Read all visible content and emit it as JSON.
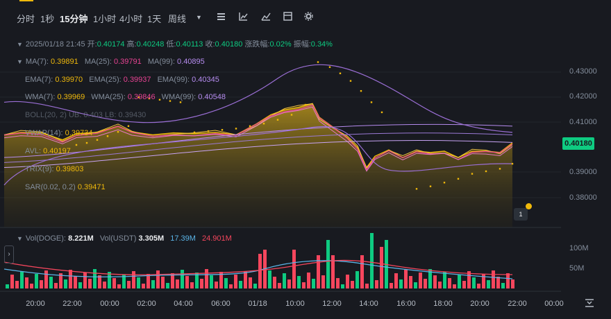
{
  "timeframes": [
    "分时",
    "1秒",
    "15分钟",
    "1小时",
    "4小时",
    "1天",
    "周线"
  ],
  "active_timeframe": 2,
  "toolbar_icons": [
    "chevron-down-icon",
    "indicator-icon",
    "chart-type-icon",
    "draw-icon",
    "template-icon",
    "settings-icon"
  ],
  "ohlc": {
    "date": "2025/01/18 21:45",
    "open_label": "开:",
    "open": "0.40174",
    "high_label": "高:",
    "high": "0.40248",
    "low_label": "低:",
    "low": "0.40113",
    "close_label": "收:",
    "close": "0.40180",
    "change_label": "涨跌幅:",
    "change": "0.02%",
    "amp_label": "振幅:",
    "amp": "0.34%"
  },
  "indicators": {
    "ma": [
      {
        "label": "MA(7):",
        "value": "0.39891",
        "color": "#f0b90b"
      },
      {
        "label": "MA(25):",
        "value": "0.39791",
        "color": "#e84393"
      },
      {
        "label": "MA(99):",
        "value": "0.40895",
        "color": "#b68cf0"
      }
    ],
    "ema": [
      {
        "label": "EMA(7):",
        "value": "0.39970",
        "color": "#f0b90b"
      },
      {
        "label": "EMA(25):",
        "value": "0.39937",
        "color": "#e84393"
      },
      {
        "label": "EMA(99):",
        "value": "0.40345",
        "color": "#b68cf0"
      }
    ],
    "wma": [
      {
        "label": "WMA(7):",
        "value": "0.39969",
        "color": "#f0b90b"
      },
      {
        "label": "WMA(25):",
        "value": "0.39846",
        "color": "#e84393"
      },
      {
        "label": "WMA(99):",
        "value": "0.40548",
        "color": "#b68cf0"
      }
    ],
    "boll": {
      "label": "BOLL(20, 2)",
      "up": "UB: 0.403",
      "dn": "LB: 0.39430"
    },
    "vwap": {
      "label": "VWAP(14):",
      "value": "0.39734"
    },
    "avl": {
      "label": "AVL:",
      "value": "0.40197"
    },
    "trix": {
      "label": "TRIX(9):",
      "value": "0.39803"
    },
    "sar": {
      "label": "SAR(0.02, 0.2)",
      "value": "0.39471"
    }
  },
  "price_axis": [
    "0.43000",
    "0.42000",
    "0.41000",
    "0.39000",
    "0.38000"
  ],
  "last_price": "0.40180",
  "volume_legend": {
    "doge_label": "Vol(DOGE):",
    "doge": "8.221M",
    "usdt_label": "Vol(USDT)",
    "usdt": "3.305M",
    "ma1": "17.39M",
    "ma2": "24.901M"
  },
  "volume_axis": [
    "100M",
    "50M"
  ],
  "time_axis": [
    "20:00",
    "22:00",
    "00:00",
    "02:00",
    "04:00",
    "06:00",
    "01/18",
    "10:00",
    "12:00",
    "14:00",
    "16:00",
    "18:00",
    "20:00",
    "22:00",
    "00:00"
  ],
  "badge": "1",
  "colors": {
    "up": "#0ecb81",
    "down": "#f6465d",
    "accent": "#f0b90b"
  }
}
